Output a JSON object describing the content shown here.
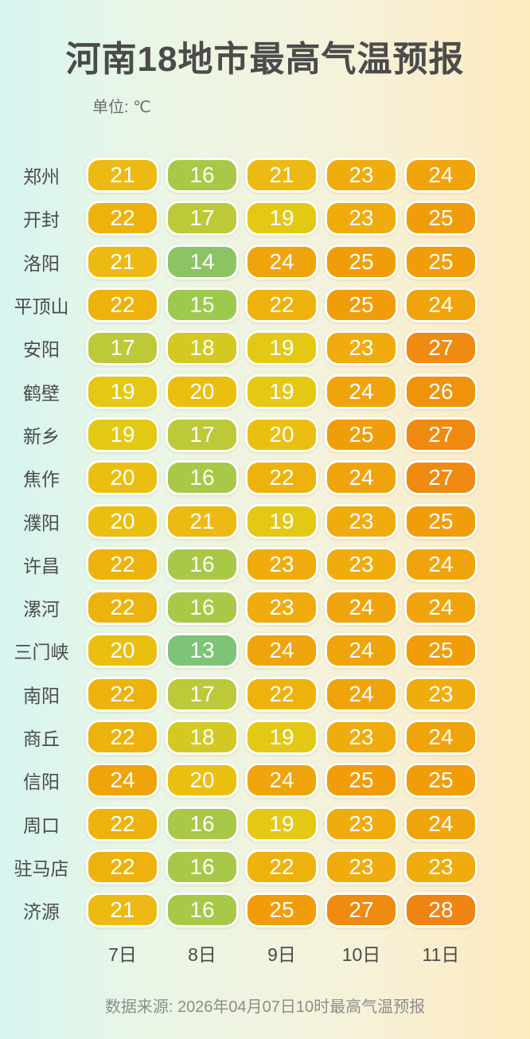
{
  "chart_data": {
    "type": "heatmap",
    "title": "河南18地市最高气温预报",
    "unit_label": "单位: ℃",
    "source": "数据来源: 2026年04月07日10时最高气温预报",
    "columns": [
      "7日",
      "8日",
      "9日",
      "10日",
      "11日"
    ],
    "rows": [
      {
        "city": "郑州",
        "values": [
          21,
          16,
          21,
          23,
          24
        ]
      },
      {
        "city": "开封",
        "values": [
          22,
          17,
          19,
          23,
          25
        ]
      },
      {
        "city": "洛阳",
        "values": [
          21,
          14,
          24,
          25,
          25
        ]
      },
      {
        "city": "平顶山",
        "values": [
          22,
          15,
          22,
          25,
          24
        ]
      },
      {
        "city": "安阳",
        "values": [
          17,
          18,
          19,
          23,
          27
        ]
      },
      {
        "city": "鹤壁",
        "values": [
          19,
          20,
          19,
          24,
          26
        ]
      },
      {
        "city": "新乡",
        "values": [
          19,
          17,
          20,
          25,
          27
        ]
      },
      {
        "city": "焦作",
        "values": [
          20,
          16,
          22,
          24,
          27
        ]
      },
      {
        "city": "濮阳",
        "values": [
          20,
          21,
          19,
          23,
          25
        ]
      },
      {
        "city": "许昌",
        "values": [
          22,
          16,
          23,
          23,
          24
        ]
      },
      {
        "city": "漯河",
        "values": [
          22,
          16,
          23,
          24,
          24
        ]
      },
      {
        "city": "三门峡",
        "values": [
          20,
          13,
          24,
          24,
          25
        ]
      },
      {
        "city": "南阳",
        "values": [
          22,
          17,
          22,
          24,
          23
        ]
      },
      {
        "city": "商丘",
        "values": [
          22,
          18,
          19,
          23,
          24
        ]
      },
      {
        "city": "信阳",
        "values": [
          24,
          20,
          24,
          25,
          25
        ]
      },
      {
        "city": "周口",
        "values": [
          22,
          16,
          19,
          23,
          24
        ]
      },
      {
        "city": "驻马店",
        "values": [
          22,
          16,
          22,
          23,
          23
        ]
      },
      {
        "city": "济源",
        "values": [
          21,
          16,
          25,
          27,
          28
        ]
      }
    ],
    "value_range": [
      13,
      28
    ],
    "color_scale": {
      "13": "#7ec476",
      "14": "#8cc464",
      "15": "#9ec94f",
      "16": "#a9c847",
      "17": "#bcc938",
      "18": "#d3c922",
      "19": "#e3c913",
      "20": "#ebbf10",
      "21": "#ecba12",
      "22": "#eeb20d",
      "23": "#efac0c",
      "24": "#f0a40b",
      "25": "#f19d0a",
      "26": "#ef930c",
      "27": "#ee8b10",
      "28": "#ee8413"
    },
    "legend_position": "none",
    "grid": "off"
  },
  "colors": {
    "background_left": "#d7f5f0",
    "background_right": "#fdeabf",
    "title_text": "#4b4b4b",
    "pill_text": "#ffffff",
    "pill_border": "#ffffff",
    "footer_text": "#8d8d8d"
  }
}
